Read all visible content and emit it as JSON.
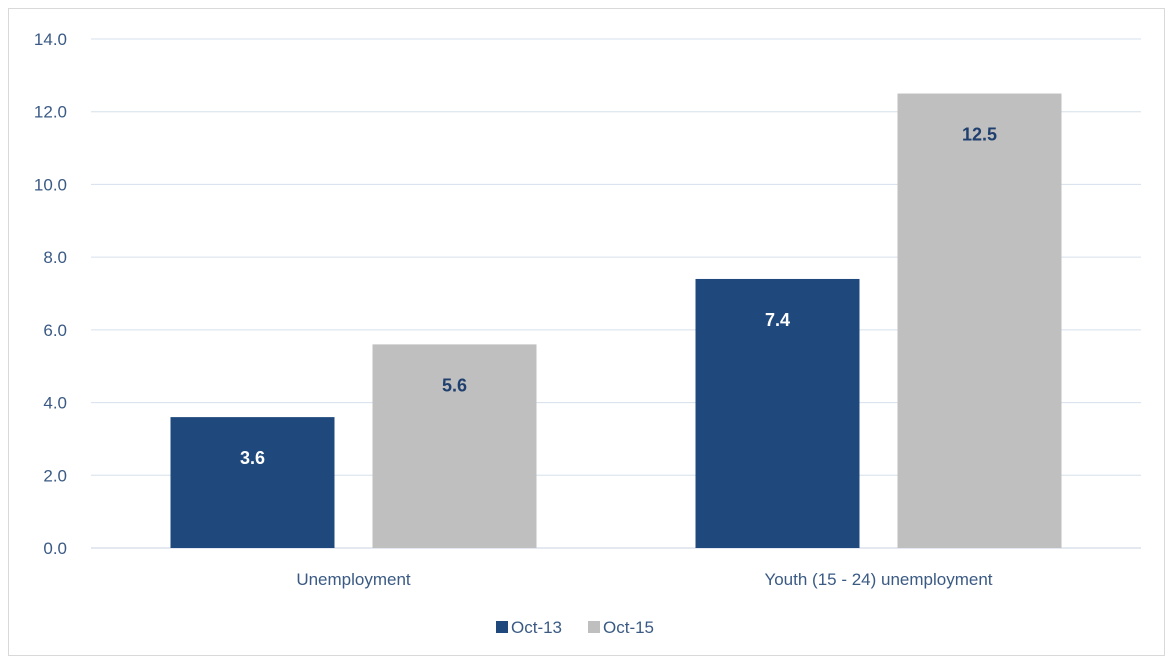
{
  "chart_data": {
    "type": "bar",
    "title": "",
    "xlabel": "",
    "ylabel": "",
    "categories": [
      "Unemployment",
      "Youth (15 - 24) unemployment"
    ],
    "series": [
      {
        "name": "Oct-13",
        "values": [
          3.6,
          7.4
        ],
        "labels": [
          "3.6",
          "7.4"
        ],
        "color": "#1f497d",
        "label_color": "#ffffff"
      },
      {
        "name": "Oct-15",
        "values": [
          5.6,
          12.5
        ],
        "labels": [
          "5.6",
          "12.5"
        ],
        "color": "#bfbfbf",
        "label_color": "#1f3f6e"
      }
    ],
    "ylim": [
      0,
      14
    ],
    "yticks": [
      "0.0",
      "2.0",
      "4.0",
      "6.0",
      "8.0",
      "10.0",
      "12.0",
      "14.0"
    ],
    "grid": true,
    "legend": "bottom-center"
  }
}
